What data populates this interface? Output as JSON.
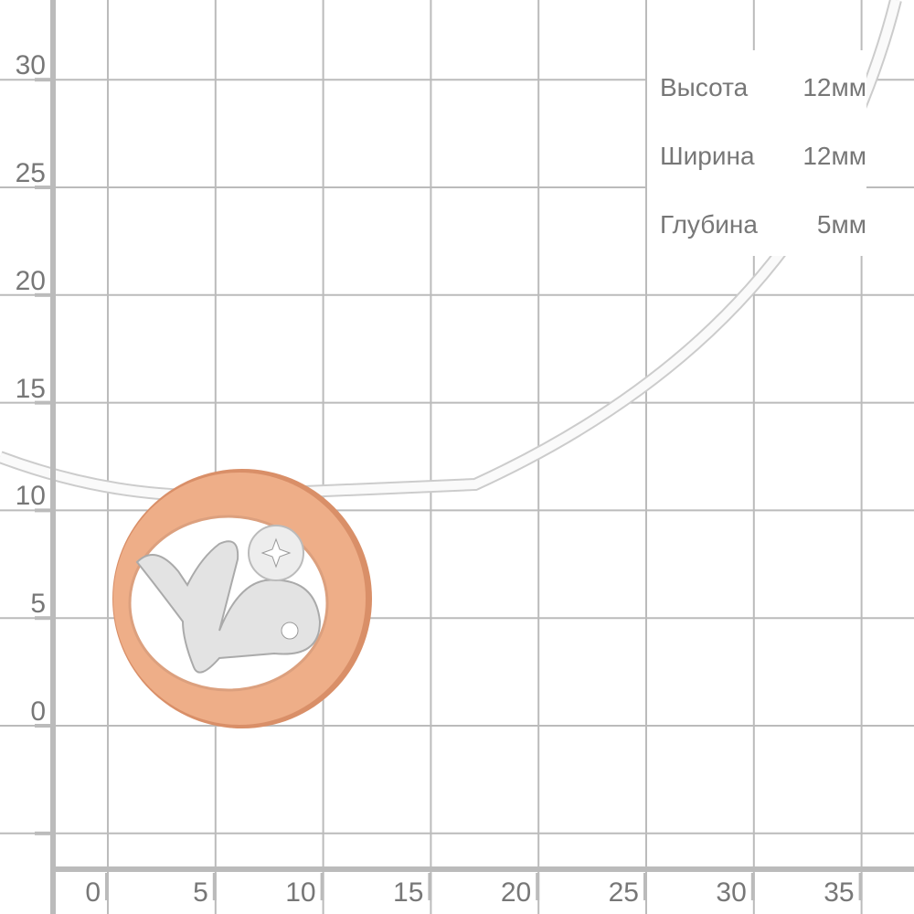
{
  "grid": {
    "x_ticks": [
      "0",
      "5",
      "10",
      "15",
      "20",
      "25",
      "30",
      "35"
    ],
    "y_ticks": [
      "30",
      "25",
      "20",
      "15",
      "10",
      "5",
      "0"
    ],
    "line_color": "#bbbbbb",
    "label_color": "#777777"
  },
  "specs": [
    {
      "label": "Высота",
      "value": "12мм"
    },
    {
      "label": "Ширина",
      "value": "12мм"
    },
    {
      "label": "Глубина",
      "value": "5мм"
    }
  ],
  "product": {
    "icon": "capricorn-zodiac-pendant",
    "gold_color": "#e8a57e",
    "silver_color": "#e6e6e6"
  }
}
